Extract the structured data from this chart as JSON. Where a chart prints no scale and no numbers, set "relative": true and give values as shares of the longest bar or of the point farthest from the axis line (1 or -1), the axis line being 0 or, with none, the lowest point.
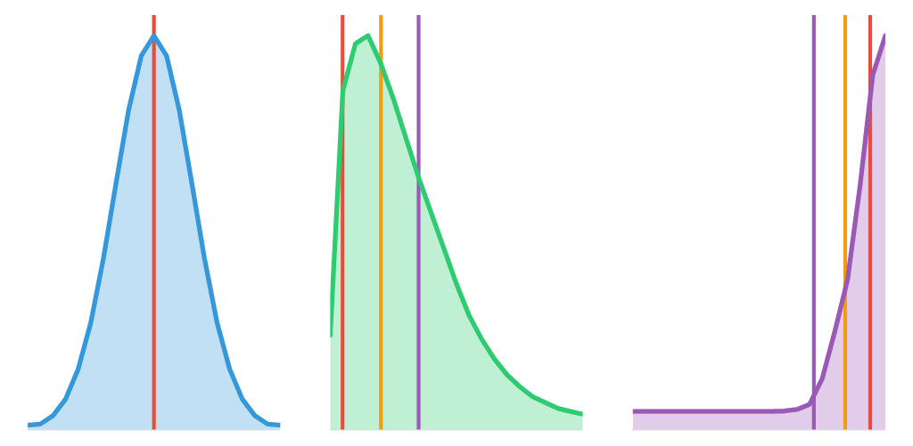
{
  "chart_data": [
    {
      "type": "area",
      "relative": true,
      "categories": [
        null,
        null,
        null,
        null,
        null,
        null,
        null,
        null,
        null,
        null,
        null,
        null,
        null,
        null,
        null,
        null,
        null,
        null,
        null,
        null,
        null
      ],
      "tick_labels": false,
      "series": [
        {
          "color": "#3498db",
          "values": [
            0.012,
            0.015,
            0.036,
            0.078,
            0.154,
            0.272,
            0.435,
            0.626,
            0.812,
            0.949,
            1,
            0.949,
            0.812,
            0.626,
            0.435,
            0.272,
            0.154,
            0.078,
            0.036,
            0.015,
            0.012
          ]
        }
      ]
    },
    {
      "type": "area",
      "relative": true,
      "categories": [
        null,
        null,
        null,
        null,
        null,
        null,
        null,
        null,
        null,
        null,
        null,
        null,
        null,
        null,
        null,
        null,
        null,
        null,
        null,
        null,
        null
      ],
      "tick_labels": false,
      "series": [
        {
          "color": "#2ecc71",
          "values": [
            0.24,
            0.86,
            0.98,
            1,
            0.93,
            0.84,
            0.74,
            0.64,
            0.55,
            0.46,
            0.37,
            0.29,
            0.23,
            0.18,
            0.14,
            0.11,
            0.085,
            0.07,
            0.055,
            0.047,
            0.04
          ]
        }
      ]
    },
    {
      "type": "area",
      "relative": true,
      "categories": [
        null,
        null,
        null,
        null,
        null,
        null,
        null,
        null,
        null,
        null,
        null,
        null,
        null,
        null,
        null,
        null,
        null,
        null,
        null,
        null,
        null
      ],
      "tick_labels": false,
      "series": [
        {
          "color": "#9b59b6",
          "values": [
            0.047,
            0.047,
            0.047,
            0.047,
            0.047,
            0.047,
            0.047,
            0.047,
            0.047,
            0.047,
            0.047,
            0.047,
            0.048,
            0.052,
            0.065,
            0.13,
            0.25,
            0.38,
            0.62,
            0.9,
            1
          ]
        }
      ]
    }
  ]
}
